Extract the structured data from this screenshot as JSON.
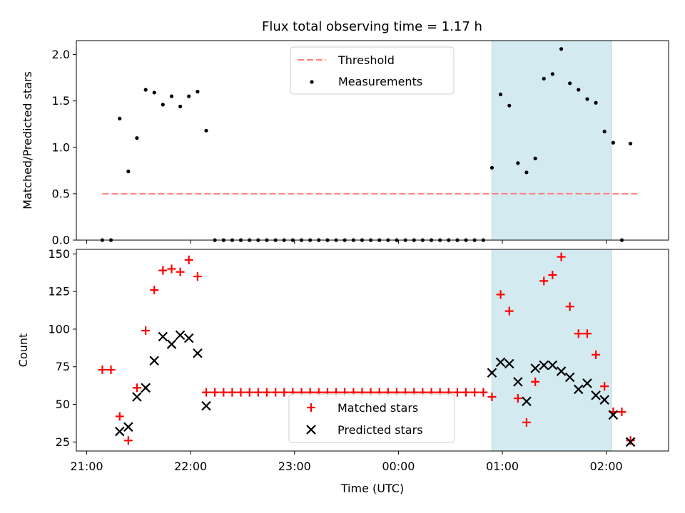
{
  "chart_data": {
    "title": "Flux total observing time = 1.17 h",
    "xlabel": "Time (UTC)",
    "x_tick_labels": [
      "21:00",
      "22:00",
      "23:00",
      "00:00",
      "01:00",
      "02:00"
    ],
    "x_tick_values_h": [
      0,
      1,
      2,
      3,
      4,
      5
    ],
    "x_range_h": [
      -0.1,
      5.6
    ],
    "shaded_region_h": [
      3.9,
      5.05
    ],
    "shade_color": "#d3eaf0",
    "panels": [
      {
        "id": "top",
        "type": "scatter",
        "ylabel": "Matched/Predicted stars",
        "ylim": [
          0,
          2.15
        ],
        "yticks": [
          0.0,
          0.5,
          1.0,
          1.5,
          2.0
        ],
        "ytick_labels": [
          "0.0",
          "0.5",
          "1.0",
          "1.5",
          "2.0"
        ],
        "legend": {
          "position": "top-center",
          "entries": [
            "Threshold",
            "Measurements"
          ]
        },
        "threshold": {
          "name": "Threshold",
          "value": 0.5,
          "x_range_h": [
            0.15,
            5.3
          ],
          "color": "#ff7f7f",
          "style": "dashed"
        },
        "series": [
          {
            "name": "Measurements",
            "marker": "dot",
            "color": "#000000",
            "x_h": [
              0.15,
              0.233,
              0.317,
              0.4,
              0.483,
              0.567,
              0.65,
              0.733,
              0.817,
              0.9,
              0.983,
              1.067,
              1.15,
              1.233,
              1.317,
              1.4,
              1.483,
              1.567,
              1.65,
              1.733,
              1.817,
              1.9,
              1.983,
              2.067,
              2.15,
              2.233,
              2.317,
              2.4,
              2.483,
              2.567,
              2.65,
              2.733,
              2.817,
              2.9,
              2.983,
              3.067,
              3.15,
              3.233,
              3.317,
              3.4,
              3.483,
              3.567,
              3.65,
              3.733,
              3.817,
              3.9,
              3.983,
              4.067,
              4.15,
              4.233,
              4.317,
              4.4,
              4.483,
              4.567,
              4.65,
              4.733,
              4.817,
              4.9,
              4.983,
              5.067,
              5.15,
              5.233
            ],
            "y": [
              0.0,
              0.0,
              1.31,
              0.74,
              1.1,
              1.62,
              1.59,
              1.46,
              1.55,
              1.44,
              1.55,
              1.6,
              1.18,
              0.0,
              0.0,
              0.0,
              0.0,
              0.0,
              0.0,
              0.0,
              0.0,
              0.0,
              0.0,
              0.0,
              0.0,
              0.0,
              0.0,
              0.0,
              0.0,
              0.0,
              0.0,
              0.0,
              0.0,
              0.0,
              0.0,
              0.0,
              0.0,
              0.0,
              0.0,
              0.0,
              0.0,
              0.0,
              0.0,
              0.0,
              0.0,
              0.78,
              1.57,
              1.45,
              0.83,
              0.73,
              0.88,
              1.74,
              1.79,
              2.06,
              1.69,
              1.62,
              1.52,
              1.48,
              1.17,
              1.05,
              0.0,
              1.04
            ]
          }
        ]
      },
      {
        "id": "bottom",
        "type": "scatter",
        "ylabel": "Count",
        "ylim": [
          19,
          153
        ],
        "yticks": [
          25,
          50,
          75,
          100,
          125,
          150
        ],
        "ytick_labels": [
          "25",
          "50",
          "75",
          "100",
          "125",
          "150"
        ],
        "legend": {
          "position": "bottom-center",
          "entries": [
            "Matched stars",
            "Predicted stars"
          ]
        },
        "series": [
          {
            "name": "Matched stars",
            "marker": "plus",
            "color": "#ff0000",
            "x_h": [
              0.15,
              0.233,
              0.317,
              0.4,
              0.483,
              0.567,
              0.65,
              0.733,
              0.817,
              0.9,
              0.983,
              1.067,
              1.15,
              1.233,
              1.317,
              1.4,
              1.483,
              1.567,
              1.65,
              1.733,
              1.817,
              1.9,
              1.983,
              2.067,
              2.15,
              2.233,
              2.317,
              2.4,
              2.483,
              2.567,
              2.65,
              2.733,
              2.817,
              2.9,
              2.983,
              3.067,
              3.15,
              3.233,
              3.317,
              3.4,
              3.483,
              3.567,
              3.65,
              3.733,
              3.817,
              3.9,
              3.983,
              4.067,
              4.15,
              4.233,
              4.317,
              4.4,
              4.483,
              4.567,
              4.65,
              4.733,
              4.817,
              4.9,
              4.983,
              5.067,
              5.15,
              5.233
            ],
            "y": [
              73,
              73,
              42,
              26,
              61,
              99,
              126,
              139,
              140,
              138,
              146,
              135,
              58,
              58,
              58,
              58,
              58,
              58,
              58,
              58,
              58,
              58,
              58,
              58,
              58,
              58,
              58,
              58,
              58,
              58,
              58,
              58,
              58,
              58,
              58,
              58,
              58,
              58,
              58,
              58,
              58,
              58,
              58,
              58,
              58,
              55,
              123,
              112,
              54,
              38,
              65,
              132,
              136,
              148,
              115,
              97,
              97,
              83,
              62,
              45,
              45,
              26
            ]
          },
          {
            "name": "Predicted stars",
            "marker": "x",
            "color": "#000000",
            "x_h": [
              0.317,
              0.4,
              0.483,
              0.567,
              0.65,
              0.733,
              0.817,
              0.9,
              0.983,
              1.067,
              1.15,
              3.9,
              3.983,
              4.067,
              4.15,
              4.233,
              4.317,
              4.4,
              4.483,
              4.567,
              4.65,
              4.733,
              4.817,
              4.9,
              4.983,
              5.067,
              5.233
            ],
            "y": [
              32,
              35,
              55,
              61,
              79,
              95,
              90,
              96,
              94,
              84,
              49,
              71,
              78,
              77,
              65,
              52,
              74,
              76,
              76,
              72,
              68,
              60,
              64,
              56,
              53,
              43,
              25
            ]
          }
        ]
      }
    ]
  }
}
